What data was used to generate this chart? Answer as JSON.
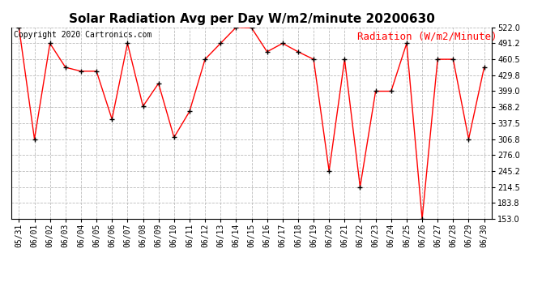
{
  "title": "Solar Radiation Avg per Day W/m2/minute 20200630",
  "copyright": "Copyright 2020 Cartronics.com",
  "legend_label": "Radiation (W/m2/Minute)",
  "dates": [
    "05/31",
    "06/01",
    "06/02",
    "06/03",
    "06/04",
    "06/05",
    "06/06",
    "06/07",
    "06/08",
    "06/09",
    "06/10",
    "06/11",
    "06/12",
    "06/13",
    "06/14",
    "06/15",
    "06/16",
    "06/17",
    "06/18",
    "06/19",
    "06/20",
    "06/21",
    "06/22",
    "06/23",
    "06/24",
    "06/25",
    "06/26",
    "06/27",
    "06/28",
    "06/29",
    "06/30"
  ],
  "values": [
    522.0,
    306.8,
    491.2,
    445.0,
    437.5,
    437.5,
    345.0,
    491.2,
    370.0,
    414.0,
    310.0,
    360.0,
    460.5,
    491.2,
    522.0,
    521.0,
    475.0,
    491.2,
    475.0,
    460.5,
    245.2,
    460.5,
    214.5,
    399.0,
    399.0,
    491.2,
    153.0,
    460.5,
    460.5,
    306.8,
    445.0
  ],
  "ylim": [
    153.0,
    522.0
  ],
  "yticks": [
    153.0,
    183.8,
    214.5,
    245.2,
    276.0,
    306.8,
    337.5,
    368.2,
    399.0,
    429.8,
    460.5,
    491.2,
    522.0
  ],
  "line_color": "red",
  "marker_color": "black",
  "bg_color": "#ffffff",
  "grid_color": "#bbbbbb",
  "title_fontsize": 11,
  "copyright_fontsize": 7,
  "legend_fontsize": 9,
  "tick_fontsize": 7
}
